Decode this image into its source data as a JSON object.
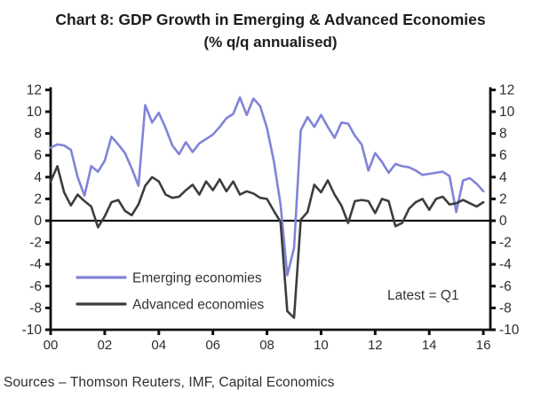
{
  "title": {
    "line1": "Chart 8: GDP Growth in Emerging & Advanced Economies",
    "line2": "(% q/q annualised)"
  },
  "source_note": "Sources – Thomson Reuters, IMF, Capital Economics",
  "annotation": "Latest = Q1",
  "colors": {
    "emerging": "#8184d8",
    "advanced": "#3d3d3d",
    "axis": "#111111",
    "tick_text": "#2e2e2e",
    "legend_text": "#333333"
  },
  "chart_data": {
    "type": "line",
    "title": "Chart 8: GDP Growth in Emerging & Advanced Economies (% q/q annualised)",
    "xlabel": "",
    "ylabel": "% q/q annualised",
    "grid": false,
    "legend_position": "inside-bottom-left",
    "ylim": [
      -10,
      12
    ],
    "y_ticks": [
      12,
      10,
      8,
      6,
      4,
      2,
      0,
      -2,
      -4,
      -6,
      -8,
      -10
    ],
    "x_tick_years": [
      2000,
      2002,
      2004,
      2006,
      2008,
      2010,
      2012,
      2014,
      2016
    ],
    "x_tick_labels": [
      "00",
      "02",
      "04",
      "06",
      "08",
      "10",
      "12",
      "14",
      "16"
    ],
    "x_start_year": 2000,
    "x_frequency": "quarterly",
    "x_end_label": "2016 Q1",
    "series": [
      {
        "name": "Emerging economies",
        "color": "#8184d8",
        "values": [
          6.7,
          7.0,
          6.9,
          6.5,
          4.0,
          2.3,
          5.0,
          4.5,
          5.5,
          7.7,
          7.0,
          6.2,
          4.8,
          3.2,
          10.6,
          9.0,
          9.9,
          8.5,
          6.9,
          6.1,
          7.2,
          6.3,
          7.1,
          7.5,
          7.9,
          8.6,
          9.4,
          9.8,
          11.3,
          9.7,
          11.2,
          10.5,
          8.5,
          5.5,
          1.5,
          -5.0,
          -2.5,
          8.3,
          9.5,
          8.6,
          9.7,
          8.6,
          7.6,
          9.0,
          8.9,
          7.8,
          7.0,
          4.6,
          6.2,
          5.4,
          4.4,
          5.2,
          5.0,
          4.9,
          4.6,
          4.2,
          4.3,
          4.4,
          4.5,
          4.1,
          0.8,
          3.7,
          3.9,
          3.4,
          2.7
        ]
      },
      {
        "name": "Advanced economies",
        "color": "#3d3d3d",
        "values": [
          3.6,
          5.0,
          2.6,
          1.4,
          2.4,
          1.8,
          1.3,
          -0.6,
          0.4,
          1.7,
          1.9,
          0.9,
          0.5,
          1.5,
          3.2,
          4.0,
          3.6,
          2.4,
          2.1,
          2.2,
          2.8,
          3.3,
          2.4,
          3.6,
          2.8,
          3.8,
          2.7,
          3.6,
          2.4,
          2.7,
          2.5,
          2.1,
          2.0,
          0.9,
          -0.1,
          -8.3,
          -8.9,
          0.1,
          0.8,
          3.3,
          2.6,
          3.7,
          2.4,
          1.4,
          -0.2,
          1.8,
          1.9,
          1.8,
          0.7,
          2.0,
          1.8,
          -0.5,
          -0.2,
          1.1,
          1.7,
          2.0,
          1.0,
          2.0,
          2.2,
          1.5,
          1.6,
          1.9,
          1.6,
          1.3,
          1.7
        ]
      }
    ]
  }
}
